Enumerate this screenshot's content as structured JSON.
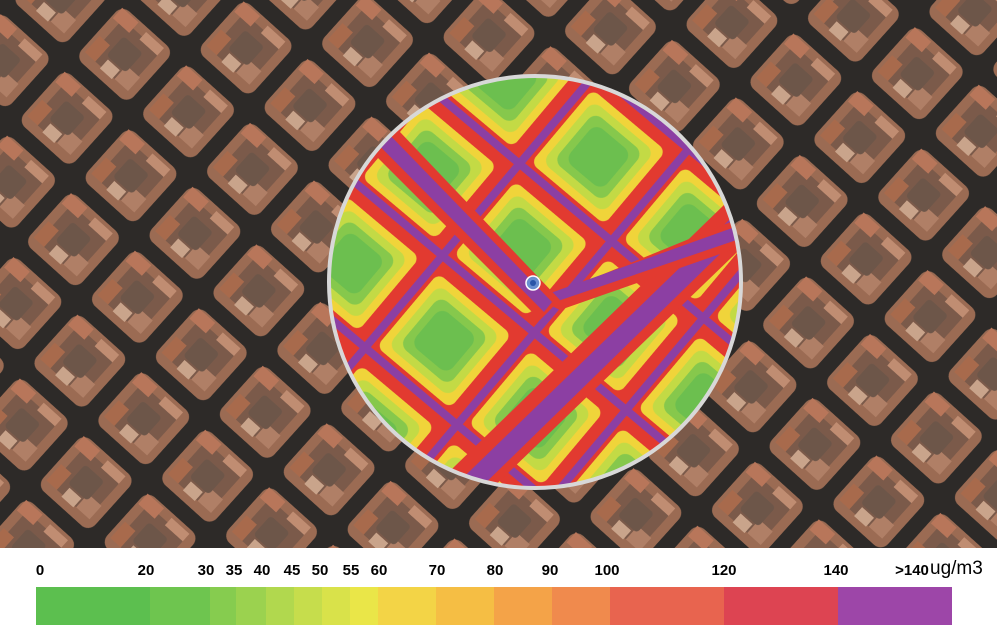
{
  "map": {
    "type": "satellite-heatmap-overlay",
    "overlay_shape": "circle",
    "marker_icon": "location-dot-icon"
  },
  "legend": {
    "unit": "ug/m3",
    "ticks": [
      "0",
      "20",
      "30",
      "35",
      "40",
      "45",
      "50",
      "55",
      "60",
      "70",
      "80",
      "90",
      "100",
      "120",
      "140",
      ">140"
    ],
    "bins": [
      {
        "from": 0,
        "to": 20,
        "color": "#5cbf4f"
      },
      {
        "from": 20,
        "to": 30,
        "color": "#6ec54f"
      },
      {
        "from": 30,
        "to": 35,
        "color": "#86cc4f"
      },
      {
        "from": 35,
        "to": 40,
        "color": "#9bd24f"
      },
      {
        "from": 40,
        "to": 45,
        "color": "#b1d84e"
      },
      {
        "from": 45,
        "to": 50,
        "color": "#c6dd4c"
      },
      {
        "from": 50,
        "to": 55,
        "color": "#d9e24a"
      },
      {
        "from": 55,
        "to": 60,
        "color": "#eae648"
      },
      {
        "from": 60,
        "to": 70,
        "color": "#f3d446"
      },
      {
        "from": 70,
        "to": 80,
        "color": "#f5be44"
      },
      {
        "from": 80,
        "to": 90,
        "color": "#f4a348"
      },
      {
        "from": 90,
        "to": 100,
        "color": "#f08a4d"
      },
      {
        "from": 100,
        "to": 120,
        "color": "#e8644f"
      },
      {
        "from": 120,
        "to": 140,
        "color": "#dd4452"
      },
      {
        "from": 140,
        "to": null,
        "color": "#9d46a8"
      }
    ]
  }
}
